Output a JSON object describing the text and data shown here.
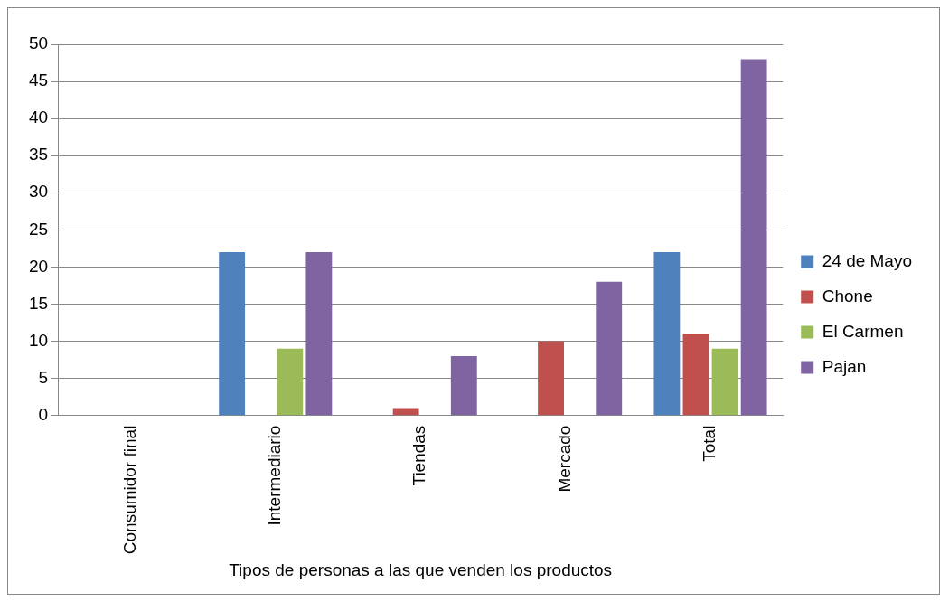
{
  "chart_data": {
    "type": "bar",
    "xlabel": "Tipos de personas a las que venden los productos",
    "categories": [
      "Consumidor final",
      "Intermediario",
      "Tiendas",
      "Mercado",
      "Total"
    ],
    "series": [
      {
        "name": "24 de Mayo",
        "color": "#4f81bd",
        "values": [
          0,
          22,
          0,
          0,
          22
        ]
      },
      {
        "name": "Chone",
        "color": "#c0504d",
        "values": [
          0,
          0,
          1,
          10,
          11
        ]
      },
      {
        "name": "El Carmen",
        "color": "#9bbb59",
        "values": [
          0,
          9,
          0,
          0,
          9
        ]
      },
      {
        "name": "Pajan",
        "color": "#8064a2",
        "values": [
          0,
          22,
          8,
          18,
          48
        ]
      }
    ],
    "ylim": [
      0,
      50
    ],
    "yticks": [
      0,
      5,
      10,
      15,
      20,
      25,
      30,
      35,
      40,
      45,
      50
    ],
    "grid": "y",
    "legend": "right"
  }
}
